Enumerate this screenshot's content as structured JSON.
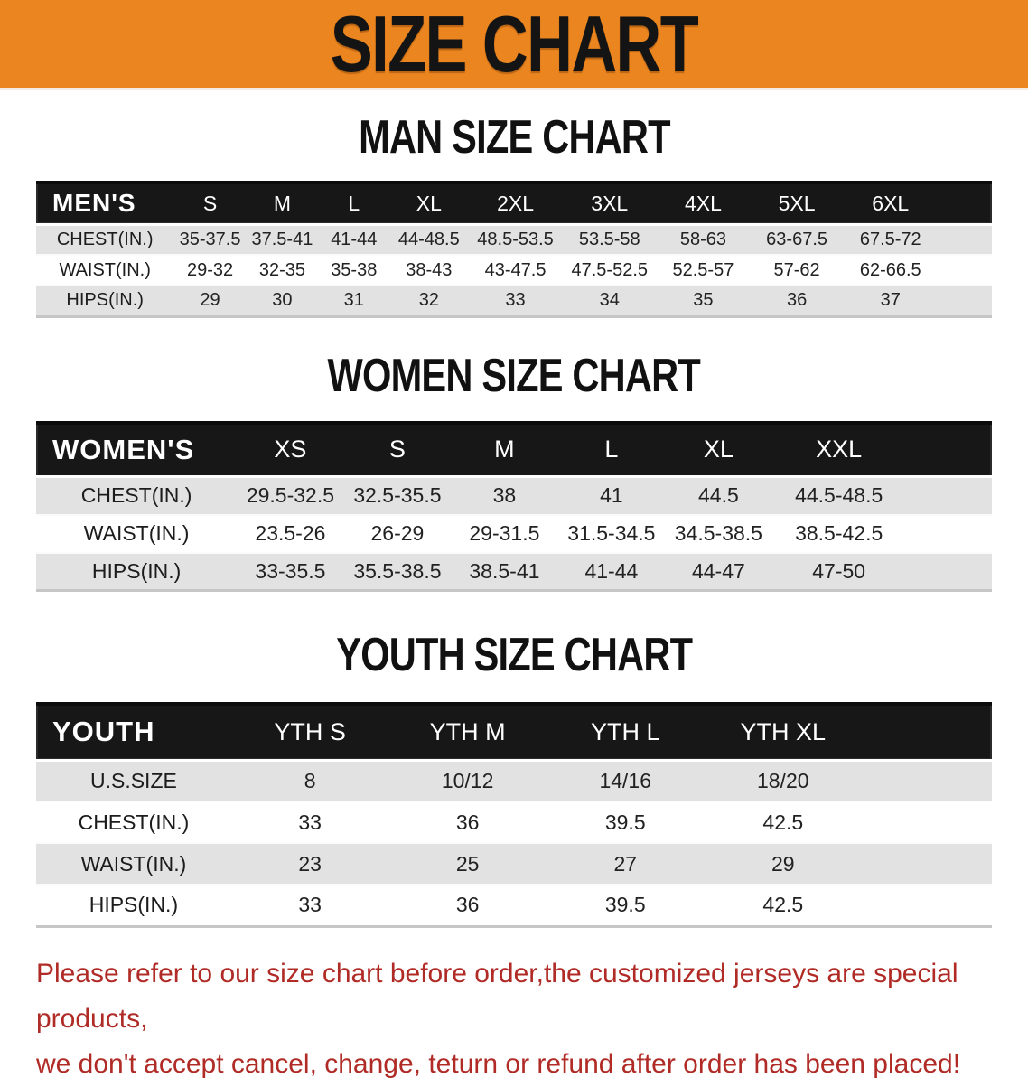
{
  "banner": {
    "title": "SIZE CHART"
  },
  "colors": {
    "banner_bg": "#EB851F",
    "header_bg": "#171717",
    "row_alt_bg": "#E2E2E2",
    "note_color": "#B02B26"
  },
  "sections": [
    {
      "id": "men",
      "heading": "MAN SIZE CHART",
      "table": {
        "header_label": "MEN'S",
        "columns": [
          "S",
          "M",
          "L",
          "XL",
          "2XL",
          "3XL",
          "4XL",
          "5XL",
          "6XL"
        ],
        "rows": [
          {
            "label": "CHEST(IN.)",
            "values": [
              "35-37.5",
              "37.5-41",
              "41-44",
              "44-48.5",
              "48.5-53.5",
              "53.5-58",
              "58-63",
              "63-67.5",
              "67.5-72"
            ]
          },
          {
            "label": "WAIST(IN.)",
            "values": [
              "29-32",
              "32-35",
              "35-38",
              "38-43",
              "43-47.5",
              "47.5-52.5",
              "52.5-57",
              "57-62",
              "62-66.5"
            ]
          },
          {
            "label": "HIPS(IN.)",
            "values": [
              "29",
              "30",
              "31",
              "32",
              "33",
              "34",
              "35",
              "36",
              "37"
            ]
          }
        ]
      }
    },
    {
      "id": "women",
      "heading": "WOMEN SIZE CHART",
      "table": {
        "header_label": "WOMEN'S",
        "columns": [
          "XS",
          "S",
          "M",
          "L",
          "XL",
          "XXL"
        ],
        "rows": [
          {
            "label": "CHEST(IN.)",
            "values": [
              "29.5-32.5",
              "32.5-35.5",
              "38",
              "41",
              "44.5",
              "44.5-48.5"
            ]
          },
          {
            "label": "WAIST(IN.)",
            "values": [
              "23.5-26",
              "26-29",
              "29-31.5",
              "31.5-34.5",
              "34.5-38.5",
              "38.5-42.5"
            ]
          },
          {
            "label": "HIPS(IN.)",
            "values": [
              "33-35.5",
              "35.5-38.5",
              "38.5-41",
              "41-44",
              "44-47",
              "47-50"
            ]
          }
        ]
      }
    },
    {
      "id": "youth",
      "heading": "YOUTH SIZE CHART",
      "table": {
        "header_label": "YOUTH",
        "columns": [
          "YTH S",
          "YTH M",
          "YTH L",
          "YTH XL"
        ],
        "rows": [
          {
            "label": "U.S.SIZE",
            "values": [
              "8",
              "10/12",
              "14/16",
              "18/20"
            ]
          },
          {
            "label": "CHEST(IN.)",
            "values": [
              "33",
              "36",
              "39.5",
              "42.5"
            ]
          },
          {
            "label": "WAIST(IN.)",
            "values": [
              "23",
              "25",
              "27",
              "29"
            ]
          },
          {
            "label": "HIPS(IN.)",
            "values": [
              "33",
              "36",
              "39.5",
              "42.5"
            ]
          }
        ]
      }
    }
  ],
  "note": {
    "line1": "Please refer to our size chart before order,the customized jerseys are special products,",
    "line2": "we don't accept cancel, change, teturn or refund after order has been placed!"
  }
}
